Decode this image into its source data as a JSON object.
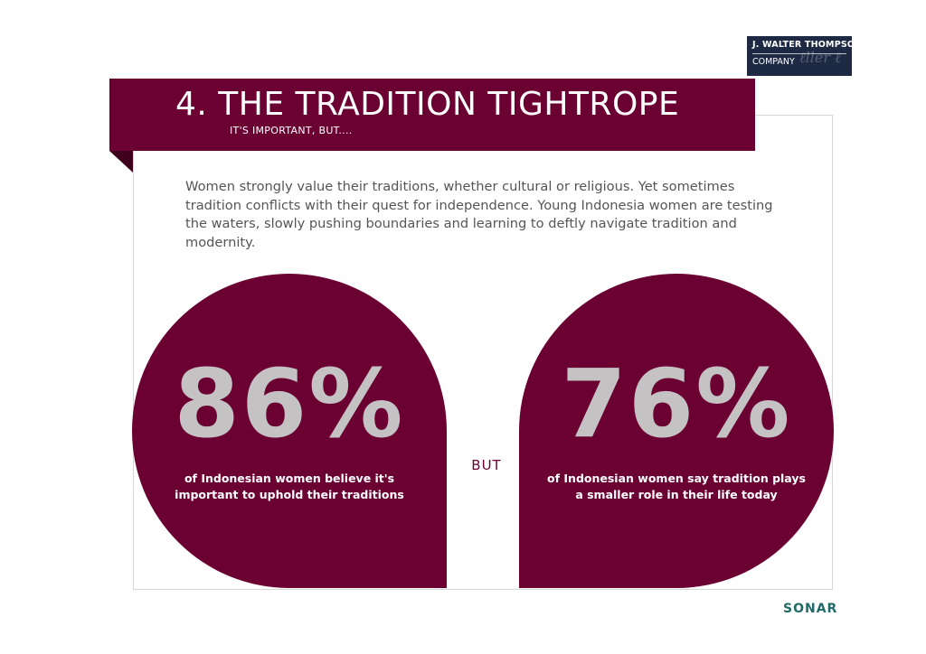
{
  "logo": {
    "line1": "J. WALTER THOMPSON",
    "line2": "COMPANY"
  },
  "header": {
    "title": "4. THE TRADITION TIGHTROPE",
    "subtitle": "IT'S IMPORTANT, BUT...."
  },
  "intro": "Women strongly value their traditions, whether cultural or religious. Yet sometimes tradition conflicts with their quest for independence. Young Indonesia women are testing the waters, slowly pushing boundaries and learning to deftly navigate tradition and modernity.",
  "stats": [
    {
      "value": "86%",
      "caption": "of Indonesian women believe it's important to uphold their traditions"
    },
    {
      "value": "76%",
      "caption": "of Indonesian women say tradition plays a smaller role in their life today"
    }
  ],
  "connector": "BUT",
  "footer": {
    "brand": "SONAR"
  },
  "colors": {
    "accent": "#6b0033",
    "stat_number": "#c4c2c2",
    "logo_bg": "#1e2a44",
    "footer_brand": "#1f6b67"
  }
}
